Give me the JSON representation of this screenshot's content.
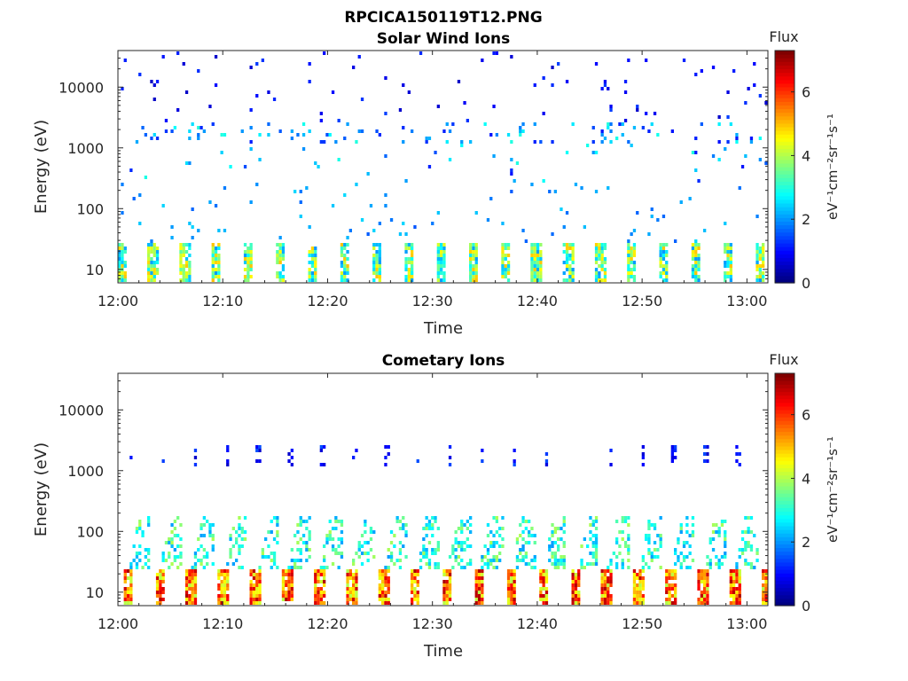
{
  "figure_title": "RPCICA150119T12.PNG",
  "colorbar": {
    "title": "Flux",
    "label": "eV⁻¹cm⁻²sr⁻¹s⁻¹",
    "range": [
      0,
      7.3
    ],
    "ticks": [
      "0",
      "2",
      "4",
      "6"
    ],
    "colormap": "jet"
  },
  "chart_data": [
    {
      "type": "heatmap",
      "title": "Solar Wind Ions",
      "xlabel": "Time",
      "ylabel": "Energy (eV)",
      "x_ticks": [
        "12:00",
        "12:10",
        "12:20",
        "12:30",
        "12:40",
        "12:50",
        "13:00"
      ],
      "y_ticks": [
        "10",
        "100",
        "1000",
        "10000"
      ],
      "y_scale": "log",
      "ylim": [
        6,
        40000
      ],
      "xlim": [
        "12:00",
        "13:02"
      ],
      "z_label": "Flux",
      "bands": [
        {
          "energy_range_eV": [
            6,
            28
          ],
          "flux_range": [
            2,
            5
          ],
          "pattern": "periodic every ~3 min"
        },
        {
          "energy_range_eV": [
            300,
            3000
          ],
          "flux_range": [
            1,
            3
          ],
          "pattern": "sparse, stronger near 1500 eV"
        },
        {
          "energy_range_eV": [
            3000,
            40000
          ],
          "flux_range": [
            0.5,
            1.5
          ],
          "pattern": "sparse scattered"
        }
      ]
    },
    {
      "type": "heatmap",
      "title": "Cometary Ions",
      "xlabel": "Time",
      "ylabel": "Energy (eV)",
      "x_ticks": [
        "12:00",
        "12:10",
        "12:20",
        "12:30",
        "12:40",
        "12:50",
        "13:00"
      ],
      "y_ticks": [
        "10",
        "100",
        "1000",
        "10000"
      ],
      "y_scale": "log",
      "ylim": [
        6,
        40000
      ],
      "xlim": [
        "12:00",
        "13:02"
      ],
      "z_label": "Flux",
      "bands": [
        {
          "energy_range_eV": [
            6,
            25
          ],
          "flux_range": [
            4,
            7
          ],
          "pattern": "periodic every ~3 min"
        },
        {
          "energy_range_eV": [
            25,
            200
          ],
          "flux_range": [
            2,
            4
          ],
          "pattern": "rising streaks after each burst"
        },
        {
          "energy_range_eV": [
            1200,
            3000
          ],
          "flux_range": [
            0.5,
            1.5
          ],
          "pattern": "periodic sparse"
        }
      ]
    }
  ]
}
